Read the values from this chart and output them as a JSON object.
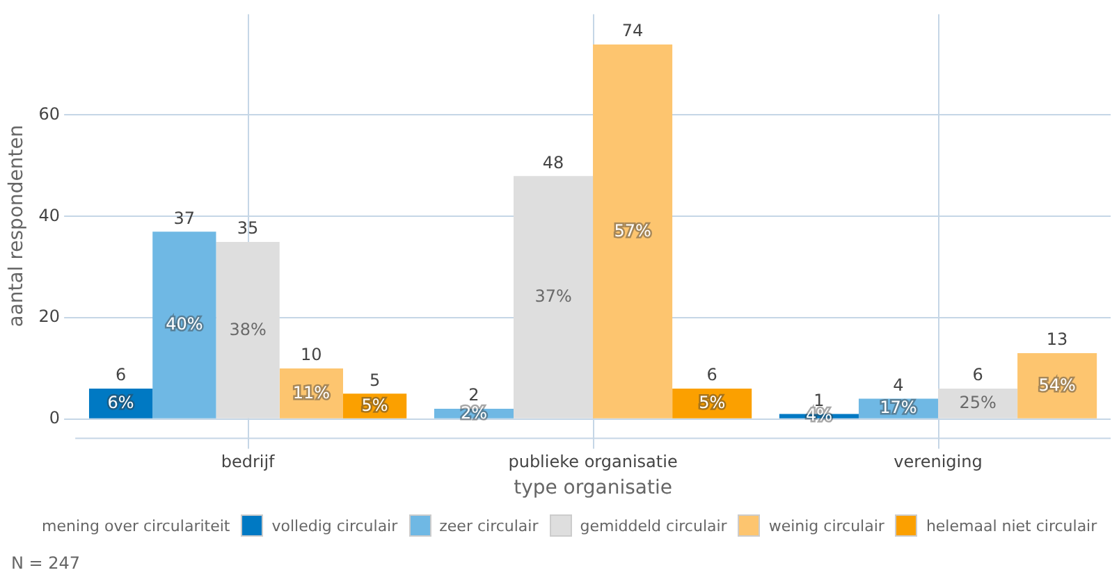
{
  "chart_data": {
    "type": "bar",
    "xlabel": "type organisatie",
    "ylabel": "aantal respondenten",
    "legend_title": "mening over circulariteit",
    "categories": [
      "bedrijf",
      "publieke organisatie",
      "vereniging"
    ],
    "series": [
      {
        "name": "volledig circulair",
        "color": "#0079c3",
        "values": [
          6,
          null,
          1
        ]
      },
      {
        "name": "zeer circulair",
        "color": "#6fb8e4",
        "values": [
          37,
          2,
          4
        ]
      },
      {
        "name": "gemiddeld circulair",
        "color": "#dedede",
        "values": [
          35,
          48,
          6
        ]
      },
      {
        "name": "weinig circulair",
        "color": "#fdc56f",
        "values": [
          10,
          74,
          13
        ]
      },
      {
        "name": "helemaal niet circulair",
        "color": "#fba000",
        "values": [
          5,
          6,
          null
        ]
      }
    ],
    "ylim": [
      -3.7,
      80
    ],
    "yticks": [
      0,
      20,
      40,
      60
    ],
    "grid": true,
    "legend": "bottom",
    "data_labels": true,
    "annotations": [
      "6%",
      "4%",
      "40%",
      "2%",
      "17%",
      "38%",
      "37%",
      "25%",
      "11%",
      "57%",
      "54%",
      "5%",
      "5%",
      "N = 247"
    ]
  }
}
